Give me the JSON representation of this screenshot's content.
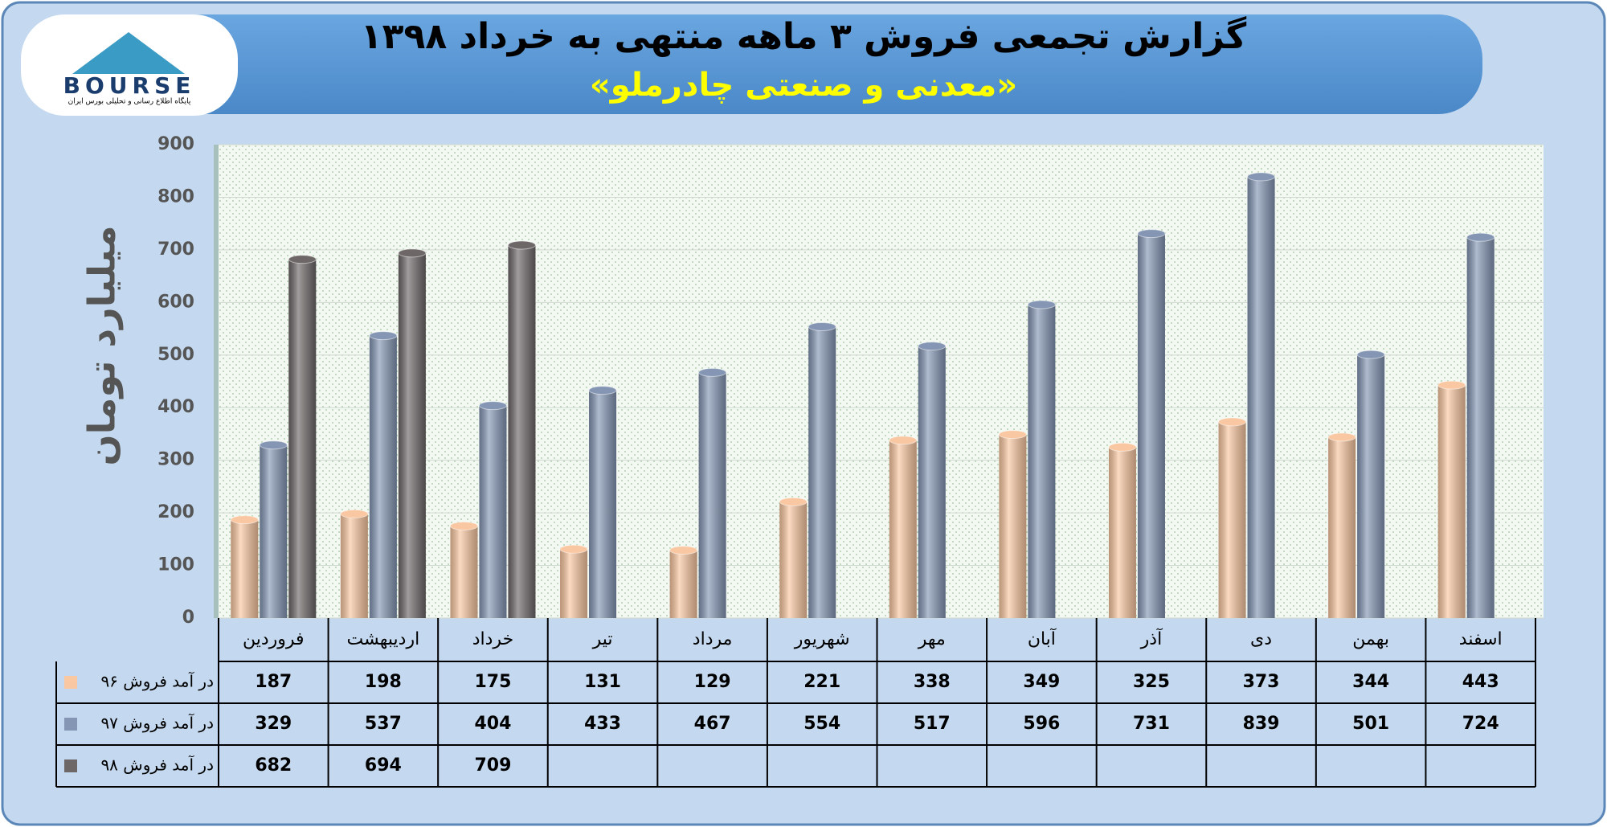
{
  "logo": {
    "text": "BOURSE",
    "tagline": "پایگاه اطلاع رسانی و تحلیلی بورس ایران"
  },
  "chart_data": {
    "type": "bar",
    "title": "گزارش تجمعی فروش ۳ ماهه منتهی به خرداد ۱۳۹۸",
    "subtitle": "«معدنی و صنعتی چادرملو»",
    "y_label": "میلیارد تومان",
    "categories": [
      "فروردین",
      "اردیبهشت",
      "خرداد",
      "تیر",
      "مرداد",
      "شهریور",
      "مهر",
      "آبان",
      "آذر",
      "دی",
      "بهمن",
      "اسفند"
    ],
    "series": [
      {
        "name": "در آمد فروش ۹۶",
        "color": "#f9c7a1",
        "values": [
          187,
          198,
          175,
          131,
          129,
          221,
          338,
          349,
          325,
          373,
          344,
          443
        ]
      },
      {
        "name": "در آمد فروش ۹۷",
        "color": "#8496b4",
        "values": [
          329,
          537,
          404,
          433,
          467,
          554,
          517,
          596,
          731,
          839,
          501,
          724
        ]
      },
      {
        "name": "در آمد فروش ۹۸",
        "color": "#6e6768",
        "values": [
          682,
          694,
          709,
          null,
          null,
          null,
          null,
          null,
          null,
          null,
          null,
          null
        ]
      }
    ],
    "ylim": [
      0,
      900
    ],
    "yticks": [
      0,
      100,
      200,
      300,
      400,
      500,
      600,
      700,
      800,
      900
    ],
    "grid": true
  }
}
